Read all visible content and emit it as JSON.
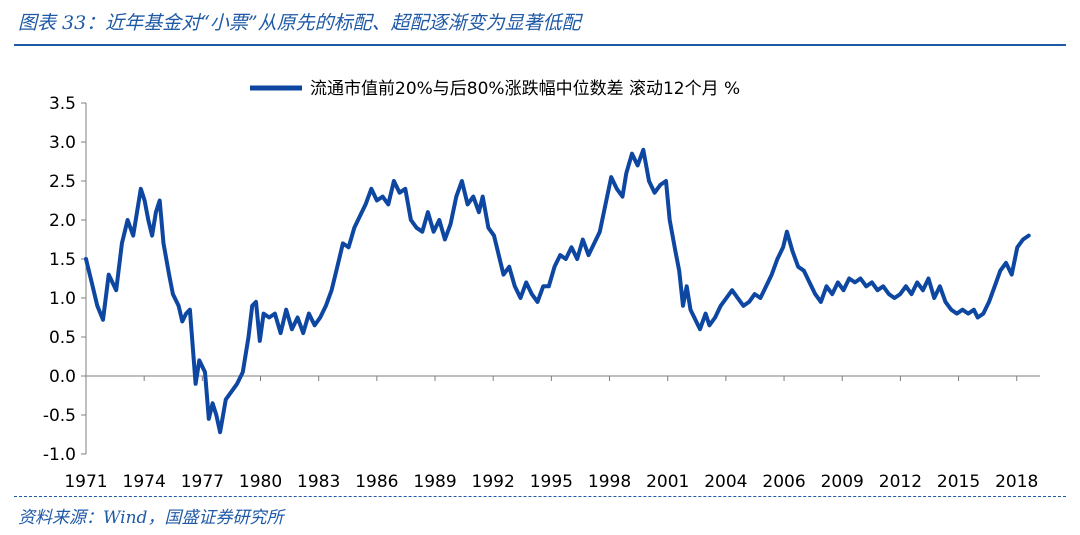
{
  "figure": {
    "title": "图表 33：近年基金对“小票”从原先的标配、超配逐渐变为显著低配",
    "source": "资料来源：Wind，国盛证券研究所"
  },
  "chart_data": {
    "type": "line",
    "legend_position": "top-center",
    "series": [
      {
        "name": "流通市值前20%与后80%涨跌幅中位数差 滚动12个月",
        "unit": "%",
        "color": "#0d47a1",
        "points": [
          [
            1971.0,
            1.5
          ],
          [
            1971.3,
            1.2
          ],
          [
            1971.6,
            0.9
          ],
          [
            1971.9,
            0.72
          ],
          [
            1972.2,
            1.3
          ],
          [
            1972.6,
            1.1
          ],
          [
            1972.9,
            1.7
          ],
          [
            1973.2,
            2.0
          ],
          [
            1973.5,
            1.8
          ],
          [
            1973.9,
            2.4
          ],
          [
            1974.1,
            2.25
          ],
          [
            1974.3,
            2.0
          ],
          [
            1974.5,
            1.8
          ],
          [
            1974.7,
            2.1
          ],
          [
            1974.9,
            2.25
          ],
          [
            1975.1,
            1.7
          ],
          [
            1975.4,
            1.3
          ],
          [
            1975.6,
            1.05
          ],
          [
            1975.9,
            0.9
          ],
          [
            1976.1,
            0.7
          ],
          [
            1976.3,
            0.8
          ],
          [
            1976.5,
            0.85
          ],
          [
            1976.8,
            -0.1
          ],
          [
            1977.0,
            0.2
          ],
          [
            1977.3,
            0.05
          ],
          [
            1977.5,
            -0.55
          ],
          [
            1977.7,
            -0.35
          ],
          [
            1977.9,
            -0.5
          ],
          [
            1978.1,
            -0.72
          ],
          [
            1978.4,
            -0.3
          ],
          [
            1978.7,
            -0.2
          ],
          [
            1979.0,
            -0.1
          ],
          [
            1979.3,
            0.05
          ],
          [
            1979.6,
            0.5
          ],
          [
            1979.8,
            0.9
          ],
          [
            1980.0,
            0.95
          ],
          [
            1980.2,
            0.45
          ],
          [
            1980.4,
            0.8
          ],
          [
            1980.7,
            0.75
          ],
          [
            1981.0,
            0.8
          ],
          [
            1981.3,
            0.55
          ],
          [
            1981.6,
            0.85
          ],
          [
            1981.9,
            0.6
          ],
          [
            1982.2,
            0.75
          ],
          [
            1982.5,
            0.55
          ],
          [
            1982.8,
            0.8
          ],
          [
            1983.1,
            0.65
          ],
          [
            1983.4,
            0.75
          ],
          [
            1983.7,
            0.9
          ],
          [
            1984.0,
            1.1
          ],
          [
            1984.3,
            1.4
          ],
          [
            1984.6,
            1.7
          ],
          [
            1984.9,
            1.65
          ],
          [
            1985.2,
            1.9
          ],
          [
            1985.5,
            2.05
          ],
          [
            1985.8,
            2.2
          ],
          [
            1986.1,
            2.4
          ],
          [
            1986.4,
            2.25
          ],
          [
            1986.7,
            2.3
          ],
          [
            1987.0,
            2.2
          ],
          [
            1987.3,
            2.5
          ],
          [
            1987.6,
            2.35
          ],
          [
            1987.9,
            2.4
          ],
          [
            1988.2,
            2.0
          ],
          [
            1988.5,
            1.9
          ],
          [
            1988.8,
            1.85
          ],
          [
            1989.1,
            2.1
          ],
          [
            1989.4,
            1.85
          ],
          [
            1989.7,
            2.0
          ],
          [
            1990.0,
            1.75
          ],
          [
            1990.3,
            1.95
          ],
          [
            1990.6,
            2.3
          ],
          [
            1990.9,
            2.5
          ],
          [
            1991.2,
            2.2
          ],
          [
            1991.5,
            2.3
          ],
          [
            1991.8,
            2.1
          ],
          [
            1992.0,
            2.3
          ],
          [
            1992.3,
            1.9
          ],
          [
            1992.6,
            1.8
          ],
          [
            1992.9,
            1.5
          ],
          [
            1993.1,
            1.3
          ],
          [
            1993.4,
            1.4
          ],
          [
            1993.7,
            1.15
          ],
          [
            1994.0,
            1.0
          ],
          [
            1994.3,
            1.2
          ],
          [
            1994.6,
            1.05
          ],
          [
            1994.9,
            0.95
          ],
          [
            1995.2,
            1.15
          ],
          [
            1995.5,
            1.15
          ],
          [
            1995.8,
            1.4
          ],
          [
            1996.1,
            1.55
          ],
          [
            1996.4,
            1.5
          ],
          [
            1996.7,
            1.65
          ],
          [
            1997.0,
            1.5
          ],
          [
            1997.3,
            1.75
          ],
          [
            1997.6,
            1.55
          ],
          [
            1997.9,
            1.7
          ],
          [
            1998.2,
            1.85
          ],
          [
            1998.5,
            2.2
          ],
          [
            1998.8,
            2.55
          ],
          [
            1999.1,
            2.4
          ],
          [
            1999.4,
            2.3
          ],
          [
            1999.6,
            2.6
          ],
          [
            1999.9,
            2.85
          ],
          [
            2000.2,
            2.7
          ],
          [
            2000.5,
            2.9
          ],
          [
            2000.8,
            2.5
          ],
          [
            2001.1,
            2.35
          ],
          [
            2001.4,
            2.45
          ],
          [
            2001.7,
            2.5
          ],
          [
            2001.9,
            2.0
          ],
          [
            2002.2,
            1.6
          ],
          [
            2002.4,
            1.35
          ],
          [
            2002.6,
            0.9
          ],
          [
            2002.8,
            1.15
          ],
          [
            2003.0,
            0.85
          ],
          [
            2003.2,
            0.75
          ],
          [
            2003.5,
            0.6
          ],
          [
            2003.8,
            0.8
          ],
          [
            2004.0,
            0.65
          ],
          [
            2004.3,
            0.75
          ],
          [
            2004.6,
            0.9
          ],
          [
            2004.9,
            1.0
          ],
          [
            2005.2,
            1.1
          ],
          [
            2005.5,
            1.0
          ],
          [
            2005.8,
            0.9
          ],
          [
            2006.1,
            0.95
          ],
          [
            2006.4,
            1.05
          ],
          [
            2006.7,
            1.0
          ],
          [
            2007.0,
            1.15
          ],
          [
            2007.3,
            1.3
          ],
          [
            2007.6,
            1.5
          ],
          [
            2007.9,
            1.65
          ],
          [
            2008.1,
            1.85
          ],
          [
            2008.4,
            1.6
          ],
          [
            2008.7,
            1.4
          ],
          [
            2009.0,
            1.35
          ],
          [
            2009.3,
            1.2
          ],
          [
            2009.6,
            1.05
          ],
          [
            2009.9,
            0.95
          ],
          [
            2010.2,
            1.15
          ],
          [
            2010.5,
            1.05
          ],
          [
            2010.8,
            1.2
          ],
          [
            2011.1,
            1.1
          ],
          [
            2011.4,
            1.25
          ],
          [
            2011.7,
            1.2
          ],
          [
            2012.0,
            1.25
          ],
          [
            2012.3,
            1.15
          ],
          [
            2012.6,
            1.2
          ],
          [
            2012.9,
            1.1
          ],
          [
            2013.2,
            1.15
          ],
          [
            2013.5,
            1.05
          ],
          [
            2013.8,
            1.0
          ],
          [
            2014.1,
            1.05
          ],
          [
            2014.4,
            1.15
          ],
          [
            2014.7,
            1.05
          ],
          [
            2015.0,
            1.2
          ],
          [
            2015.3,
            1.1
          ],
          [
            2015.6,
            1.25
          ],
          [
            2015.9,
            1.0
          ],
          [
            2016.2,
            1.15
          ],
          [
            2016.5,
            0.95
          ],
          [
            2016.8,
            0.85
          ],
          [
            2017.1,
            0.8
          ],
          [
            2017.4,
            0.85
          ],
          [
            2017.7,
            0.8
          ],
          [
            2018.0,
            0.85
          ],
          [
            2018.2,
            0.75
          ],
          [
            2018.5,
            0.8
          ],
          [
            2018.8,
            0.95
          ],
          [
            2019.1,
            1.15
          ],
          [
            2019.4,
            1.35
          ],
          [
            2019.7,
            1.45
          ],
          [
            2020.0,
            1.3
          ],
          [
            2020.3,
            1.65
          ],
          [
            2020.6,
            1.75
          ],
          [
            2020.9,
            1.8
          ]
        ]
      }
    ],
    "x_tick_labels": [
      "1971",
      "1974",
      "1977",
      "1980",
      "1983",
      "1986",
      "1989",
      "1992",
      "1995",
      "1998",
      "2001",
      "2004",
      "2006",
      "2009",
      "2012",
      "2015",
      "2018"
    ],
    "y_ticks": [
      3.5,
      3.0,
      2.5,
      2.0,
      1.5,
      1.0,
      0.5,
      0.0,
      -0.5,
      -1.0
    ],
    "y_tick_labels": [
      "3.5",
      "3.0",
      "2.5",
      "2.0",
      "1.5",
      "1.0",
      "0.5",
      "0.0",
      "-0.5",
      "-1.0"
    ],
    "ylim": [
      -1.0,
      3.5
    ],
    "xlim": [
      1971,
      2021.5
    ],
    "grid": false
  }
}
